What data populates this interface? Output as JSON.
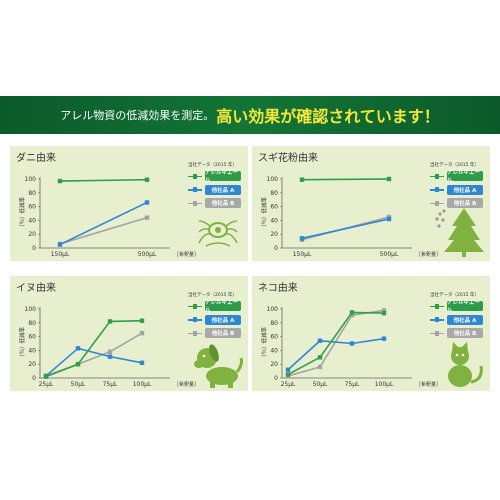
{
  "banner": {
    "text_small": "アレル物資の低減効果を測定。",
    "text_big": "高い効果が確認されています！"
  },
  "colors": {
    "banner": "#127536",
    "panel_bg": "#e8efcf",
    "series_green": "#2f9e4a",
    "series_blue": "#2e86d4",
    "series_gray": "#a3a3a3",
    "badge_green": "#2d9b48",
    "badge_blue": "#2e86d4",
    "badge_gray": "#a8a8a8",
    "illustration": "#7fb23f"
  },
  "chart_data": [
    {
      "type": "line",
      "title": "ダニ由来",
      "source": "当社データ（2015 年）",
      "ylabel": "（％）低減率",
      "xlabel": "［希釈量］",
      "x": [
        "150μL",
        "500μL"
      ],
      "y_ticks": [
        0,
        20,
        40,
        60,
        80,
        100
      ],
      "ylim": [
        0,
        100
      ],
      "series": [
        {
          "name": "アレルキエール",
          "values": [
            97,
            99
          ]
        },
        {
          "name": "他社品 A",
          "values": [
            5,
            66
          ]
        },
        {
          "name": "他社品 B",
          "values": [
            6,
            44
          ]
        }
      ],
      "illustration": "mite-icon"
    },
    {
      "type": "line",
      "title": "スギ花粉由来",
      "source": "当社データ（2015 年）",
      "ylabel": "（％）低減率",
      "xlabel": "［希釈量］",
      "x": [
        "150μL",
        "500μL"
      ],
      "y_ticks": [
        0,
        20,
        40,
        60,
        80,
        100
      ],
      "ylim": [
        0,
        100
      ],
      "series": [
        {
          "name": "アレルキエール",
          "values": [
            99,
            100
          ]
        },
        {
          "name": "他社品 A",
          "values": [
            14,
            42
          ]
        },
        {
          "name": "他社品 B",
          "values": [
            12,
            45
          ]
        }
      ],
      "illustration": "cedar-tree-icon"
    },
    {
      "type": "line",
      "title": "イヌ由来",
      "source": "当社データ（2015 年）",
      "ylabel": "（％）低減率",
      "xlabel": "［希釈量］",
      "x": [
        "25μL",
        "50μL",
        "75μL",
        "100μL"
      ],
      "y_ticks": [
        0,
        20,
        40,
        60,
        80,
        100
      ],
      "ylim": [
        0,
        100
      ],
      "series": [
        {
          "name": "アレルキエール",
          "values": [
            2,
            20,
            82,
            83
          ]
        },
        {
          "name": "他社品 A",
          "values": [
            3,
            43,
            31,
            22
          ]
        },
        {
          "name": "他社品 B",
          "values": [
            3,
            20,
            38,
            65
          ]
        }
      ],
      "illustration": "dog-icon"
    },
    {
      "type": "line",
      "title": "ネコ由来",
      "source": "当社データ（2015 年）",
      "ylabel": "（％）低減率",
      "xlabel": "［希釈量］",
      "x": [
        "25μL",
        "50μL",
        "75μL",
        "100μL"
      ],
      "y_ticks": [
        0,
        20,
        40,
        60,
        80,
        100
      ],
      "ylim": [
        0,
        100
      ],
      "series": [
        {
          "name": "アレルキエール",
          "values": [
            5,
            30,
            95,
            94
          ]
        },
        {
          "name": "他社品 A",
          "values": [
            12,
            54,
            50,
            57
          ]
        },
        {
          "name": "他社品 B",
          "values": [
            3,
            16,
            91,
            98
          ]
        }
      ],
      "illustration": "cat-icon"
    }
  ]
}
